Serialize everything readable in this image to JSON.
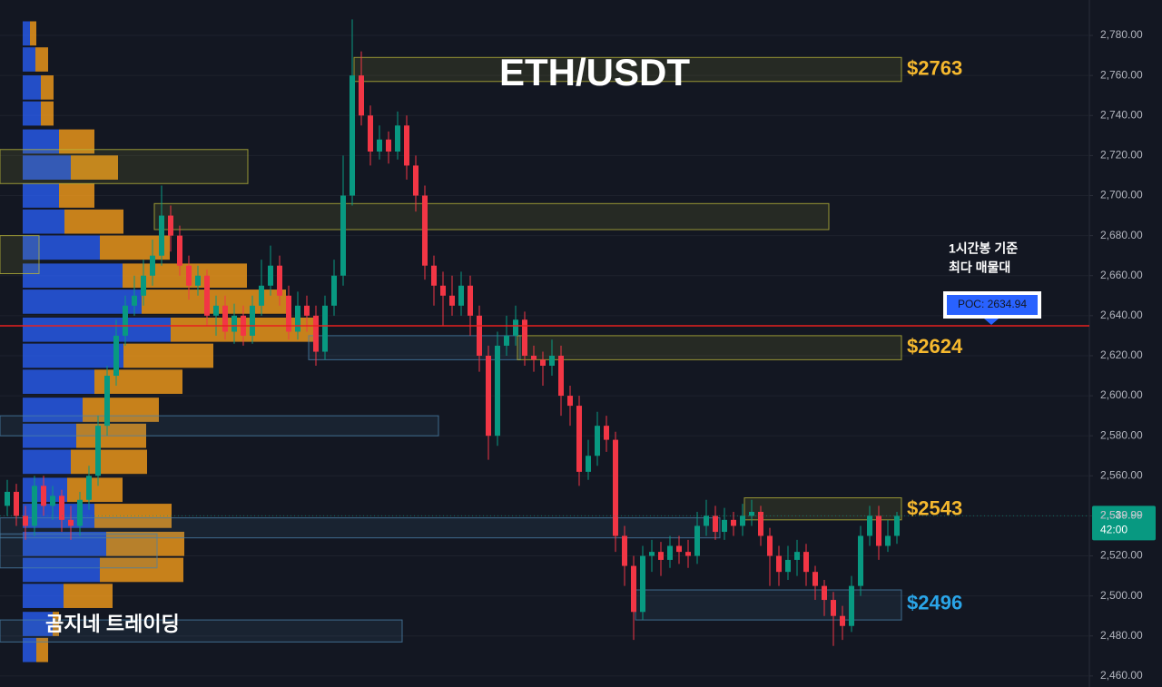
{
  "chart_data": {
    "type": "candlestick",
    "title": "ETH/USDT",
    "watermark": "곰지네 트레이딩",
    "annotation": [
      "1시간봉 기준",
      "최다 매물대"
    ],
    "ylim": [
      2454.5,
      2797.7
    ],
    "yticks": [
      {
        "value": 2460,
        "label": "2,460.00"
      },
      {
        "value": 2480,
        "label": "2,480.00"
      },
      {
        "value": 2500,
        "label": "2,500.00"
      },
      {
        "value": 2520,
        "label": "2,520.00"
      },
      {
        "value": 2540,
        "label": "2,540.00"
      },
      {
        "value": 2560,
        "label": "2,560.00"
      },
      {
        "value": 2580,
        "label": "2,580.00"
      },
      {
        "value": 2600,
        "label": "2,600.00"
      },
      {
        "value": 2620,
        "label": "2,620.00"
      },
      {
        "value": 2640,
        "label": "2,640.00"
      },
      {
        "value": 2660,
        "label": "2,660.00"
      },
      {
        "value": 2680,
        "label": "2,680.00"
      },
      {
        "value": 2700,
        "label": "2,700.00"
      },
      {
        "value": 2720,
        "label": "2,720.00"
      },
      {
        "value": 2740,
        "label": "2,740.00"
      },
      {
        "value": 2760,
        "label": "2,760.00"
      },
      {
        "value": 2780,
        "label": "2,780.00"
      }
    ],
    "candles": {
      "up_color": "#089981",
      "down_color": "#f23645",
      "open": [
        2545,
        2552,
        2540,
        2535,
        2555,
        2545,
        2550,
        2538,
        2535,
        2548,
        2560,
        2585,
        2610,
        2630,
        2645,
        2650,
        2660,
        2670,
        2690,
        2680,
        2665,
        2655,
        2660,
        2640,
        2645,
        2632,
        2640,
        2630,
        2645,
        2655,
        2665,
        2650,
        2632,
        2645,
        2640,
        2622,
        2645,
        2660,
        2700,
        2760,
        2740,
        2722,
        2728,
        2722,
        2735,
        2715,
        2700,
        2665,
        2655,
        2650,
        2645,
        2655,
        2640,
        2620,
        2580,
        2625,
        2630,
        2638,
        2620,
        2618,
        2615,
        2620,
        2600,
        2595,
        2562,
        2570,
        2585,
        2578,
        2530,
        2515,
        2492,
        2520,
        2522,
        2518,
        2525,
        2522,
        2520,
        2535,
        2540,
        2532,
        2538,
        2535,
        2540,
        2542,
        2530,
        2520,
        2512,
        2518,
        2522,
        2512,
        2505,
        2498,
        2490,
        2485,
        2505,
        2530,
        2540,
        2525,
        2530
      ],
      "high": [
        2558,
        2556,
        2545,
        2560,
        2560,
        2555,
        2553,
        2545,
        2552,
        2565,
        2590,
        2615,
        2638,
        2650,
        2660,
        2668,
        2678,
        2705,
        2695,
        2685,
        2670,
        2665,
        2663,
        2650,
        2650,
        2646,
        2645,
        2650,
        2668,
        2675,
        2670,
        2655,
        2652,
        2650,
        2645,
        2650,
        2668,
        2720,
        2788,
        2772,
        2745,
        2735,
        2732,
        2742,
        2740,
        2720,
        2705,
        2670,
        2662,
        2660,
        2662,
        2660,
        2645,
        2625,
        2632,
        2640,
        2645,
        2642,
        2625,
        2622,
        2628,
        2625,
        2605,
        2600,
        2578,
        2592,
        2590,
        2582,
        2535,
        2520,
        2525,
        2528,
        2527,
        2530,
        2530,
        2528,
        2542,
        2548,
        2545,
        2544,
        2542,
        2546,
        2548,
        2545,
        2534,
        2525,
        2525,
        2528,
        2526,
        2515,
        2508,
        2502,
        2495,
        2510,
        2535,
        2545,
        2545,
        2538,
        2542
      ],
      "low": [
        2540,
        2535,
        2528,
        2530,
        2540,
        2538,
        2532,
        2528,
        2530,
        2543,
        2555,
        2580,
        2605,
        2625,
        2640,
        2645,
        2655,
        2665,
        2672,
        2660,
        2648,
        2650,
        2635,
        2630,
        2628,
        2626,
        2625,
        2626,
        2640,
        2650,
        2645,
        2628,
        2628,
        2632,
        2615,
        2618,
        2640,
        2655,
        2695,
        2735,
        2715,
        2718,
        2716,
        2718,
        2708,
        2692,
        2658,
        2645,
        2635,
        2640,
        2640,
        2630,
        2612,
        2568,
        2575,
        2620,
        2625,
        2615,
        2612,
        2605,
        2610,
        2590,
        2585,
        2555,
        2558,
        2565,
        2572,
        2522,
        2505,
        2478,
        2488,
        2512,
        2510,
        2514,
        2516,
        2514,
        2516,
        2530,
        2528,
        2528,
        2530,
        2530,
        2535,
        2525,
        2505,
        2505,
        2508,
        2510,
        2505,
        2498,
        2490,
        2475,
        2478,
        2482,
        2500,
        2525,
        2518,
        2522,
        2526
      ],
      "close": [
        2552,
        2540,
        2535,
        2555,
        2545,
        2550,
        2538,
        2535,
        2548,
        2560,
        2585,
        2610,
        2630,
        2645,
        2650,
        2660,
        2670,
        2690,
        2680,
        2665,
        2655,
        2660,
        2640,
        2645,
        2632,
        2640,
        2630,
        2645,
        2655,
        2665,
        2650,
        2632,
        2645,
        2640,
        2622,
        2645,
        2660,
        2700,
        2760,
        2740,
        2722,
        2728,
        2722,
        2735,
        2715,
        2700,
        2665,
        2655,
        2650,
        2645,
        2655,
        2640,
        2620,
        2580,
        2625,
        2630,
        2638,
        2620,
        2618,
        2615,
        2620,
        2600,
        2595,
        2562,
        2570,
        2585,
        2578,
        2530,
        2515,
        2492,
        2520,
        2522,
        2518,
        2525,
        2522,
        2520,
        2535,
        2540,
        2532,
        2538,
        2535,
        2540,
        2542,
        2530,
        2520,
        2512,
        2518,
        2522,
        2512,
        2505,
        2498,
        2490,
        2485,
        2505,
        2530,
        2540,
        2525,
        2530,
        2539.99
      ]
    },
    "profile": {
      "buy_color": "#2962ff",
      "sell_color": "#f59c1a",
      "prices": [
        2781,
        2768,
        2754,
        2741,
        2727,
        2714,
        2700,
        2687,
        2674,
        2660,
        2647,
        2633,
        2620,
        2607,
        2593,
        2580,
        2567,
        2553,
        2540,
        2526,
        2513,
        2500,
        2486,
        2473
      ],
      "buy": [
        8,
        14,
        20,
        20,
        40,
        53,
        40,
        46,
        85,
        110,
        131,
        163,
        111,
        79,
        66,
        59,
        53,
        49,
        79,
        92,
        85,
        45,
        33,
        15
      ],
      "sell": [
        7,
        14,
        14,
        14,
        39,
        52,
        39,
        65,
        77,
        137,
        159,
        162,
        99,
        97,
        84,
        77,
        84,
        61,
        85,
        86,
        92,
        54,
        7,
        13
      ]
    },
    "zones": [
      {
        "low": 2757,
        "high": 2769,
        "start": 39,
        "end": 98,
        "color": "#b8b43a"
      },
      {
        "low": 2706,
        "high": 2723,
        "start": 0,
        "end": 26,
        "color": "#b8b43a"
      },
      {
        "low": 2683,
        "high": 2696,
        "start": 17,
        "end": 90,
        "color": "#b8b43a"
      },
      {
        "low": 2661,
        "high": 2680,
        "start": 0,
        "end": 3,
        "color": "#b8b43a"
      },
      {
        "low": 2618,
        "high": 2630,
        "start": 34,
        "end": 56,
        "color": "#4a7fa8"
      },
      {
        "low": 2618,
        "high": 2630,
        "start": 57,
        "end": 98,
        "color": "#b8b43a"
      },
      {
        "low": 2580,
        "high": 2590,
        "start": 0,
        "end": 47,
        "color": "#4a7fa8"
      },
      {
        "low": 2538,
        "high": 2549,
        "start": 82,
        "end": 98,
        "color": "#b8b43a"
      },
      {
        "low": 2529,
        "high": 2539,
        "start": 0,
        "end": 78,
        "color": "#4a7fa8"
      },
      {
        "low": 2514,
        "high": 2531,
        "start": 0,
        "end": 16,
        "color": "#4a7fa8"
      },
      {
        "low": 2488,
        "high": 2503,
        "start": 70,
        "end": 98,
        "color": "#4a7fa8"
      },
      {
        "low": 2477,
        "high": 2488,
        "start": 0,
        "end": 43,
        "color": "#4a7fa8"
      }
    ],
    "price_labels": [
      {
        "value": 2763,
        "label": "$2763",
        "color": "#f5b82e"
      },
      {
        "value": 2624,
        "label": "$2624",
        "color": "#f5b82e"
      },
      {
        "value": 2543,
        "label": "$2543",
        "color": "#f5b82e"
      },
      {
        "value": 2496,
        "label": "$2496",
        "color": "#2aa5e8"
      }
    ],
    "poc": {
      "value": 2634.94,
      "label": "POC: 2634.94",
      "color": "#e8211e"
    },
    "last_price": {
      "value": 2539.99,
      "label": "2,539.99",
      "countdown": "42:00",
      "color": "#089981"
    }
  }
}
